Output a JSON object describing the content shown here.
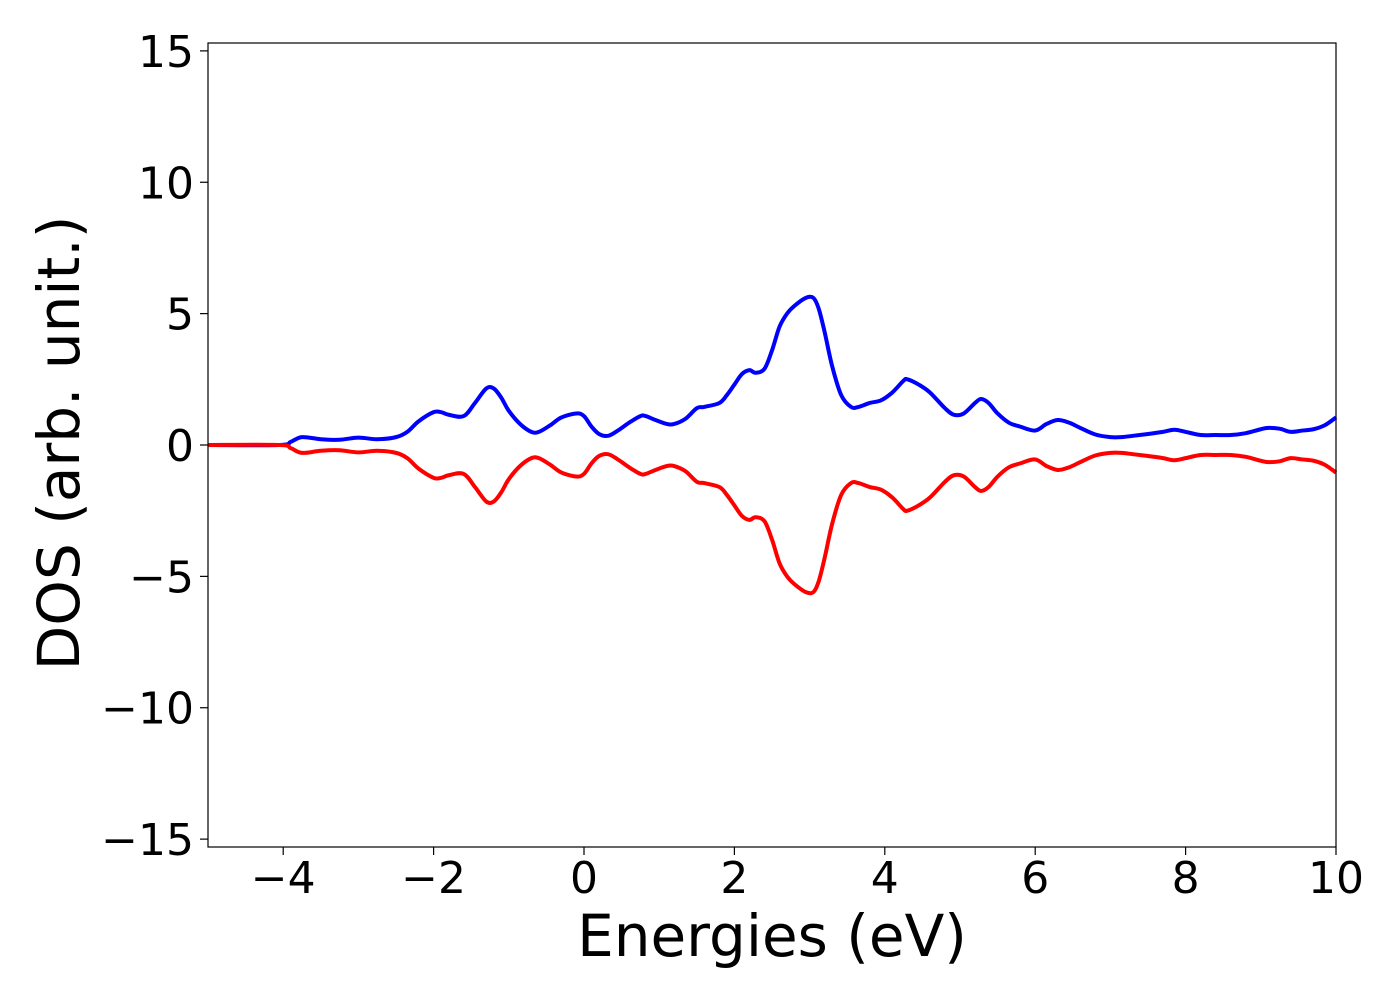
{
  "chart_data": {
    "type": "line",
    "title": "",
    "xlabel": "Energies (eV)",
    "ylabel": "DOS (arb. unit.)",
    "xlim": [
      -5,
      10
    ],
    "ylim": [
      -15.3,
      15.3
    ],
    "x_ticks": [
      -4,
      -2,
      0,
      2,
      4,
      6,
      8,
      10
    ],
    "x_tick_labels": [
      "−4",
      "−2",
      "0",
      "2",
      "4",
      "6",
      "8",
      "10"
    ],
    "y_ticks": [
      -15,
      -10,
      -5,
      0,
      5,
      10,
      15
    ],
    "y_tick_labels": [
      "−15",
      "−10",
      "−5",
      "0",
      "5",
      "10",
      "15"
    ],
    "grid": false,
    "legend": "none",
    "series": [
      {
        "color": "#0000ff",
        "x": [
          -5.0,
          -4.05,
          -3.9,
          -3.75,
          -3.5,
          -3.25,
          -3.0,
          -2.75,
          -2.5,
          -2.35,
          -2.2,
          -2.0,
          -1.9,
          -1.8,
          -1.6,
          -1.45,
          -1.3,
          -1.2,
          -1.1,
          -1.0,
          -0.85,
          -0.7,
          -0.6,
          -0.45,
          -0.3,
          -0.1,
          0.0,
          0.1,
          0.2,
          0.32,
          0.45,
          0.6,
          0.75,
          0.82,
          0.95,
          1.1,
          1.2,
          1.35,
          1.5,
          1.6,
          1.8,
          1.9,
          2.0,
          2.1,
          2.2,
          2.28,
          2.4,
          2.5,
          2.6,
          2.7,
          2.8,
          2.95,
          3.05,
          3.12,
          3.2,
          3.3,
          3.42,
          3.55,
          3.65,
          3.8,
          3.95,
          4.1,
          4.25,
          4.3,
          4.45,
          4.6,
          4.8,
          4.92,
          5.05,
          5.2,
          5.28,
          5.38,
          5.5,
          5.65,
          5.8,
          6.0,
          6.15,
          6.3,
          6.45,
          6.6,
          6.8,
          7.0,
          7.15,
          7.3,
          7.5,
          7.7,
          7.85,
          8.0,
          8.2,
          8.4,
          8.6,
          8.8,
          9.0,
          9.1,
          9.25,
          9.4,
          9.55,
          9.7,
          9.85,
          10.0
        ],
        "y": [
          0.0,
          0.0,
          0.12,
          0.3,
          0.22,
          0.2,
          0.28,
          0.22,
          0.3,
          0.5,
          0.9,
          1.25,
          1.25,
          1.15,
          1.1,
          1.6,
          2.15,
          2.15,
          1.8,
          1.3,
          0.8,
          0.5,
          0.5,
          0.75,
          1.05,
          1.2,
          1.1,
          0.7,
          0.42,
          0.35,
          0.55,
          0.85,
          1.1,
          1.1,
          0.95,
          0.8,
          0.8,
          1.0,
          1.4,
          1.45,
          1.6,
          1.9,
          2.3,
          2.7,
          2.85,
          2.75,
          2.9,
          3.6,
          4.5,
          5.0,
          5.3,
          5.6,
          5.6,
          5.2,
          4.3,
          3.0,
          1.9,
          1.45,
          1.45,
          1.6,
          1.7,
          2.0,
          2.45,
          2.5,
          2.3,
          2.0,
          1.4,
          1.15,
          1.2,
          1.6,
          1.75,
          1.6,
          1.2,
          0.85,
          0.7,
          0.55,
          0.8,
          0.95,
          0.85,
          0.65,
          0.4,
          0.3,
          0.3,
          0.35,
          0.42,
          0.5,
          0.58,
          0.5,
          0.38,
          0.38,
          0.38,
          0.45,
          0.6,
          0.65,
          0.62,
          0.5,
          0.55,
          0.6,
          0.75,
          1.05
        ]
      },
      {
        "color": "#ff0000",
        "x": [
          -5.0,
          -4.05,
          -3.9,
          -3.75,
          -3.5,
          -3.25,
          -3.0,
          -2.75,
          -2.5,
          -2.35,
          -2.2,
          -2.0,
          -1.9,
          -1.8,
          -1.6,
          -1.45,
          -1.3,
          -1.2,
          -1.1,
          -1.0,
          -0.85,
          -0.7,
          -0.6,
          -0.45,
          -0.3,
          -0.1,
          0.0,
          0.1,
          0.2,
          0.32,
          0.45,
          0.6,
          0.75,
          0.82,
          0.95,
          1.1,
          1.2,
          1.35,
          1.5,
          1.6,
          1.8,
          1.9,
          2.0,
          2.1,
          2.2,
          2.28,
          2.4,
          2.5,
          2.6,
          2.7,
          2.8,
          2.95,
          3.05,
          3.12,
          3.2,
          3.3,
          3.42,
          3.55,
          3.65,
          3.8,
          3.95,
          4.1,
          4.25,
          4.3,
          4.45,
          4.6,
          4.8,
          4.92,
          5.05,
          5.2,
          5.28,
          5.38,
          5.5,
          5.65,
          5.8,
          6.0,
          6.15,
          6.3,
          6.45,
          6.6,
          6.8,
          7.0,
          7.15,
          7.3,
          7.5,
          7.7,
          7.85,
          8.0,
          8.2,
          8.4,
          8.6,
          8.8,
          9.0,
          9.1,
          9.25,
          9.4,
          9.55,
          9.7,
          9.85,
          10.0
        ],
        "y": [
          0.0,
          0.0,
          -0.12,
          -0.3,
          -0.22,
          -0.2,
          -0.28,
          -0.22,
          -0.3,
          -0.5,
          -0.9,
          -1.25,
          -1.25,
          -1.15,
          -1.1,
          -1.6,
          -2.15,
          -2.15,
          -1.8,
          -1.3,
          -0.8,
          -0.5,
          -0.5,
          -0.75,
          -1.05,
          -1.2,
          -1.1,
          -0.7,
          -0.42,
          -0.35,
          -0.55,
          -0.85,
          -1.1,
          -1.1,
          -0.95,
          -0.8,
          -0.8,
          -1.0,
          -1.4,
          -1.45,
          -1.6,
          -1.9,
          -2.3,
          -2.7,
          -2.85,
          -2.75,
          -2.9,
          -3.6,
          -4.5,
          -5.0,
          -5.3,
          -5.6,
          -5.6,
          -5.2,
          -4.3,
          -3.0,
          -1.9,
          -1.45,
          -1.45,
          -1.6,
          -1.7,
          -2.0,
          -2.45,
          -2.5,
          -2.3,
          -2.0,
          -1.4,
          -1.15,
          -1.2,
          -1.6,
          -1.75,
          -1.6,
          -1.2,
          -0.85,
          -0.7,
          -0.55,
          -0.8,
          -0.95,
          -0.85,
          -0.65,
          -0.4,
          -0.3,
          -0.3,
          -0.35,
          -0.42,
          -0.5,
          -0.58,
          -0.5,
          -0.38,
          -0.38,
          -0.38,
          -0.45,
          -0.6,
          -0.65,
          -0.62,
          -0.5,
          -0.55,
          -0.6,
          -0.75,
          -1.05
        ]
      }
    ]
  }
}
